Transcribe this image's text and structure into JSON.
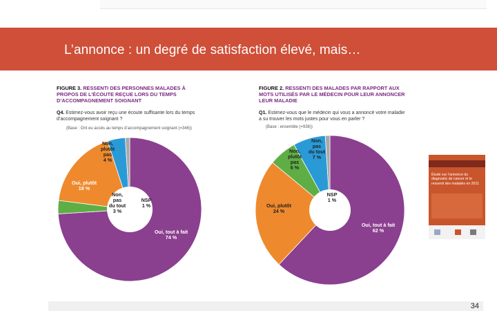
{
  "slide": {
    "title": "L’annonce : un degré de satisfaction élevé, mais…",
    "page_number": "34"
  },
  "colors": {
    "banner": "#cf4f38",
    "purple": "#8b3f8f",
    "orange": "#ee8a2d",
    "green": "#5fae45",
    "blue": "#2a9ad7",
    "gray": "#a8a8a8"
  },
  "figure3": {
    "label": "FIGURE 3.",
    "title": "RESSENTI DES PERSONNES MALADES À PROPOS DE L’ÉCOUTE REÇUE LORS DU TEMPS D’ACCOMPAGNEMENT SOIGNANT",
    "question_number": "Q4.",
    "question": "Estimez-vous avoir reçu une écoute suffisante lors du temps d’accompagnement soignant ?",
    "base": "(Base : Ont eu accès au temps d’accompagnement soignant (=346))"
  },
  "figure2": {
    "label": "FIGURE 2.",
    "title": "RESSENTI DES MALADES PAR RAPPORT AUX MOTS UTILISÉS PAR LE MÉDECIN POUR LEUR ANNONCER LEUR MALADIE",
    "question_number": "Q1.",
    "question": "Estimez-vous que le médecin qui vous a annoncé votre maladie a su trouver les mots justes pour vous en parler ?",
    "base": "(Base : ensemble (=938))"
  },
  "report_cover": {
    "title": "Étude sur l’annonce du diagnostic de cancer et le ressenti des malades en 2011"
  },
  "chart_data": [
    {
      "type": "pie",
      "id": "figure3",
      "title": "RESSENTI DES PERSONNES MALADES À PROPOS DE L’ÉCOUTE REÇUE LORS DU TEMPS D’ACCOMPAGNEMENT SOIGNANT",
      "donut": true,
      "slices": [
        {
          "name": "Oui, tout à fait",
          "value": 74,
          "label": "74 %",
          "color": "#8b3f8f"
        },
        {
          "name": "Non, pas du tout",
          "value": 3,
          "label": "3 %",
          "color": "#5fae45"
        },
        {
          "name": "Oui, plutôt",
          "value": 18,
          "label": "18 %",
          "color": "#ee8a2d"
        },
        {
          "name": "Non, plutôt pas",
          "value": 4,
          "label": "4 %",
          "color": "#2a9ad7"
        },
        {
          "name": "NSP",
          "value": 1,
          "label": "1 %",
          "color": "#a8a8a8"
        }
      ]
    },
    {
      "type": "pie",
      "id": "figure2",
      "title": "RESSENTI DES MALADES PAR RAPPORT AUX MOTS UTILISÉS PAR LE MÉDECIN POUR LEUR ANNONCER LEUR MALADIE",
      "donut": true,
      "slices": [
        {
          "name": "Oui, tout à fait",
          "value": 62,
          "label": "62 %",
          "color": "#8b3f8f"
        },
        {
          "name": "Oui, plutôt",
          "value": 24,
          "label": "24 %",
          "color": "#ee8a2d"
        },
        {
          "name": "Non, plutôt pas",
          "value": 6,
          "label": "6 %",
          "color": "#5fae45"
        },
        {
          "name": "Non, pas du tout",
          "value": 7,
          "label": "7 %",
          "color": "#2a9ad7"
        },
        {
          "name": "NSP",
          "value": 1,
          "label": "1 %",
          "color": "#a8a8a8"
        }
      ]
    }
  ]
}
